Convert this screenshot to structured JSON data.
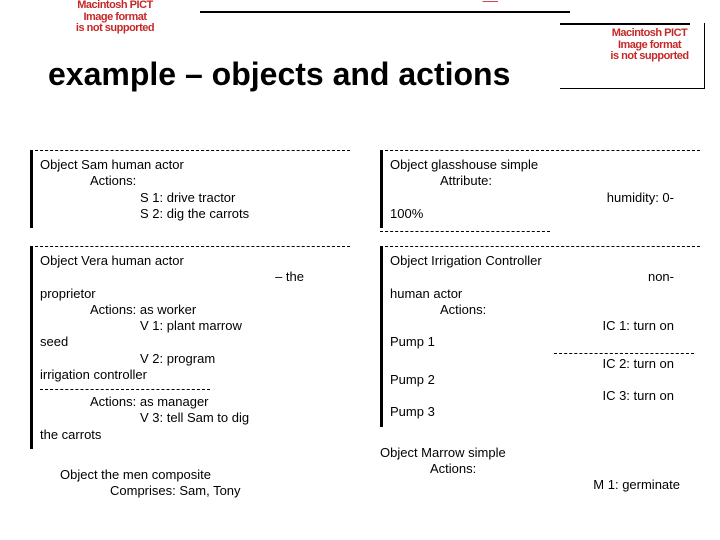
{
  "artefacts": {
    "topLeft": "Macintosh PICT\nImage format\nis not supported",
    "topRightBlur": "——",
    "topRight": "Macintosh PICT\nImage format\nis not supported"
  },
  "title": "example – objects and actions",
  "left": {
    "sam": {
      "header": "Object Sam human actor",
      "actionsLabel": "Actions:",
      "s1": "S 1: drive tractor",
      "s2": "S 2: dig the carrots"
    },
    "vera": {
      "header": "Object Vera human actor",
      "sub": "– the",
      "proprietor": "proprietor",
      "actionsWorker": "Actions: as worker",
      "v1": "V 1: plant marrow",
      "seed": "seed",
      "v2": "V 2: program",
      "v2b": "irrigation controller",
      "actionsManager": "Actions: as manager",
      "v3": "V 3: tell Sam to dig",
      "carrots": "the carrots"
    },
    "men": {
      "header": "Object the men composite",
      "comprises": "Comprises: Sam, Tony"
    }
  },
  "right": {
    "glasshouse": {
      "header": "Object glasshouse simple",
      "attrLabel": "Attribute:",
      "humidity": "humidity: 0-",
      "hundred": "100%"
    },
    "irrigation": {
      "header": "Object Irrigation Controller",
      "non": "non-",
      "human": "human actor",
      "actionsLabel": "Actions:",
      "ic1": "IC 1: turn on",
      "p1": "Pump 1",
      "ic2": "IC 2: turn on",
      "p2": "Pump 2",
      "ic3": "IC 3: turn on",
      "p3": "Pump 3"
    },
    "marrow": {
      "header": "Object Marrow simple",
      "actionsLabel": "Actions:",
      "m1": "M 1: germinate"
    }
  },
  "colors": {
    "text": "#000000",
    "artefact": "#c62828",
    "background": "#ffffff"
  }
}
